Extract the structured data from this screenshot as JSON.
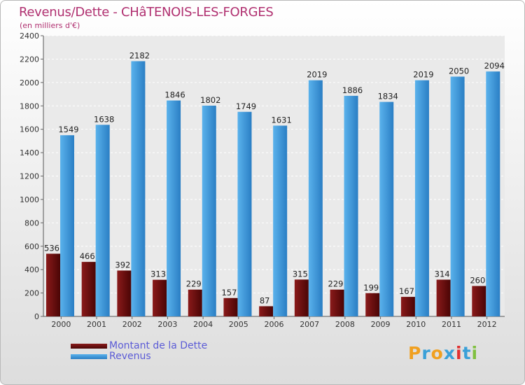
{
  "title": "Revenus/Dette - CHâTENOIS-LES-FORGES",
  "subtitle": "(en milliers d'€)",
  "logo": {
    "text": "Proxiti",
    "letters": [
      "P",
      "r",
      "o",
      "x",
      "i",
      "t",
      "i"
    ],
    "colors": [
      "#f0a020",
      "#3aa0d8",
      "#f0a020",
      "#3aa0d8",
      "#e03030",
      "#3aa0d8",
      "#80c040"
    ]
  },
  "chart_data": {
    "type": "bar",
    "categories": [
      "2000",
      "2001",
      "2002",
      "2003",
      "2004",
      "2005",
      "2006",
      "2007",
      "2008",
      "2009",
      "2010",
      "2011",
      "2012"
    ],
    "series": [
      {
        "name": "Montant de la Dette",
        "color": "#7a1212",
        "values": [
          536,
          466,
          392,
          313,
          229,
          157,
          87,
          315,
          229,
          199,
          167,
          314,
          260
        ]
      },
      {
        "name": "Revenus",
        "color": "#4aa3e0",
        "values": [
          1549,
          1638,
          2182,
          1846,
          1802,
          1749,
          1631,
          2019,
          1886,
          1834,
          2019,
          2050,
          2094
        ]
      }
    ],
    "ylim": [
      0,
      2400
    ],
    "yticks": [
      0,
      200,
      400,
      600,
      800,
      1000,
      1200,
      1400,
      1600,
      1800,
      2000,
      2200,
      2400
    ],
    "grid": true,
    "legend": "bottom-left"
  }
}
